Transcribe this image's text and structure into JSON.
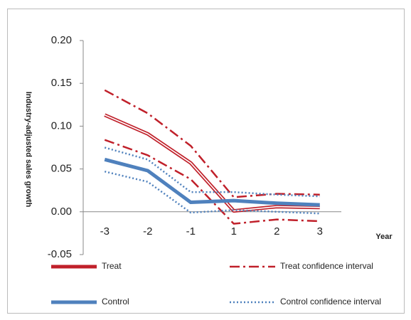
{
  "chart_data": {
    "type": "line",
    "y_label": "Industry-adjusted sales growth",
    "x_label": "Year",
    "categories": [
      "-3",
      "-2",
      "-1",
      "1",
      "2",
      "3"
    ],
    "ylim": [
      -0.05,
      0.2
    ],
    "yticks": [
      {
        "value": 0.2,
        "label": "0.20"
      },
      0.15,
      {
        "value": 0.1,
        "label": "0.10"
      },
      0.05,
      {
        "value": 0,
        "label": "0.00"
      },
      -0.05
    ],
    "series": [
      {
        "name": "Treat",
        "color": "#c0202a",
        "style": "double",
        "values": [
          0.113,
          0.091,
          0.057,
          0.001,
          0.006,
          0.005
        ]
      },
      {
        "name": "Treat confidence interval",
        "color": "#c0202a",
        "style": "dashdot",
        "upper": [
          0.142,
          0.115,
          0.077,
          0.017,
          0.021,
          0.02
        ],
        "lower": [
          0.084,
          0.066,
          0.038,
          -0.014,
          -0.009,
          -0.011
        ]
      },
      {
        "name": "Control",
        "color": "#4f81bd",
        "style": "thick",
        "values": [
          0.061,
          0.048,
          0.011,
          0.013,
          0.01,
          0.008
        ]
      },
      {
        "name": "Control confidence interval",
        "color": "#4f81bd",
        "style": "dotted",
        "upper": [
          0.075,
          0.061,
          0.023,
          0.023,
          0.02,
          0.018
        ],
        "lower": [
          0.047,
          0.035,
          -0.001,
          0.002,
          0.0,
          -0.002
        ]
      }
    ]
  }
}
